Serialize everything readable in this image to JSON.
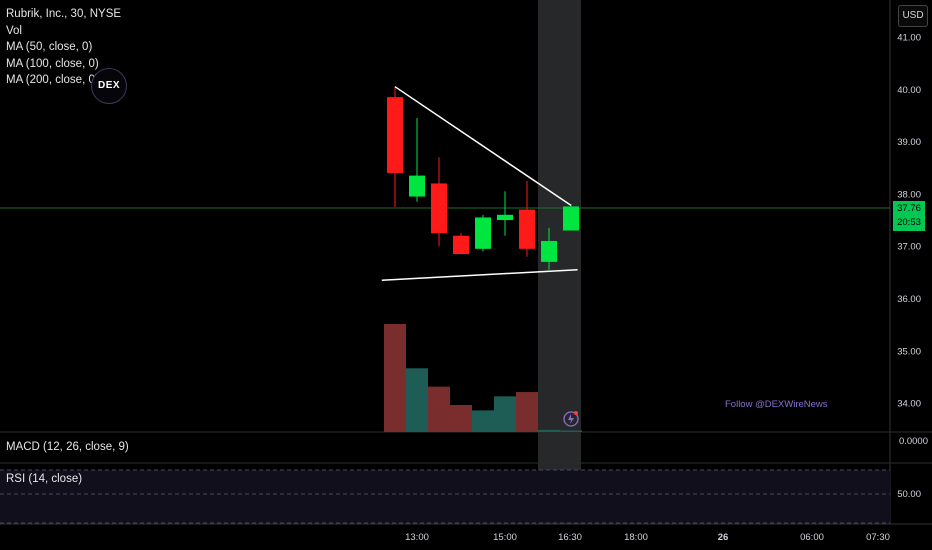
{
  "legend": {
    "symbol": "Rubrik, Inc., 30, NYSE",
    "vol": "Vol",
    "ma50": "MA (50, close, 0)",
    "ma100": "MA (100, close, 0)",
    "ma200": "MA (200, close, 0)"
  },
  "logo_text": "DEX",
  "currency_button": "USD",
  "watermark": "Follow @DEXWireNews",
  "macd_label": "MACD (12, 26, close, 9)",
  "rsi_label": "RSI (14, close)",
  "current_price": {
    "price": "37.76",
    "countdown": "20:53"
  },
  "price_axis": {
    "ticks": [
      "41.00",
      "40.00",
      "39.00",
      "38.00",
      "37.00",
      "36.00",
      "35.00",
      "34.00"
    ]
  },
  "macd_axis": {
    "value": "0.0000"
  },
  "rsi_axis": {
    "value": "50.00"
  },
  "time_axis": {
    "ticks": [
      "13:00",
      "15:00",
      "16:30",
      "18:00",
      "26",
      "06:00",
      "07:30"
    ]
  },
  "colors": {
    "up": "#00e640",
    "down": "#ff1a1a",
    "vol_up": "#1e5c56",
    "vol_down": "#7a2d2d",
    "trendline": "#ffffff",
    "highlight": "#2a2e2a"
  },
  "chart_data": {
    "type": "candlestick",
    "ylim": [
      33.5,
      41.5
    ],
    "candles": [
      {
        "open": 39.85,
        "high": 40.05,
        "low": 37.75,
        "close": 38.4,
        "volume": 100
      },
      {
        "open": 37.95,
        "high": 39.45,
        "low": 37.85,
        "close": 38.35,
        "volume": 59
      },
      {
        "open": 38.2,
        "high": 38.7,
        "low": 37.0,
        "close": 37.25,
        "volume": 42
      },
      {
        "open": 37.2,
        "high": 37.25,
        "low": 36.9,
        "close": 36.85,
        "volume": 25
      },
      {
        "open": 36.95,
        "high": 37.6,
        "low": 36.9,
        "close": 37.55,
        "volume": 20
      },
      {
        "open": 37.5,
        "high": 38.05,
        "low": 37.2,
        "close": 37.6,
        "volume": 33
      },
      {
        "open": 37.7,
        "high": 38.25,
        "low": 36.8,
        "close": 36.95,
        "volume": 37
      },
      {
        "open": 36.7,
        "high": 37.35,
        "low": 36.55,
        "close": 37.1,
        "volume": 2
      },
      {
        "open": 37.3,
        "high": 37.8,
        "low": 37.3,
        "close": 37.76,
        "volume": 1
      }
    ],
    "trendlines": [
      {
        "from": {
          "bar": 0,
          "price": 40.05
        },
        "to": {
          "bar": 8,
          "price": 37.78
        }
      },
      {
        "from": {
          "bar": -0.6,
          "price": 36.35
        },
        "to": {
          "bar": 8.3,
          "price": 36.55
        }
      }
    ]
  }
}
